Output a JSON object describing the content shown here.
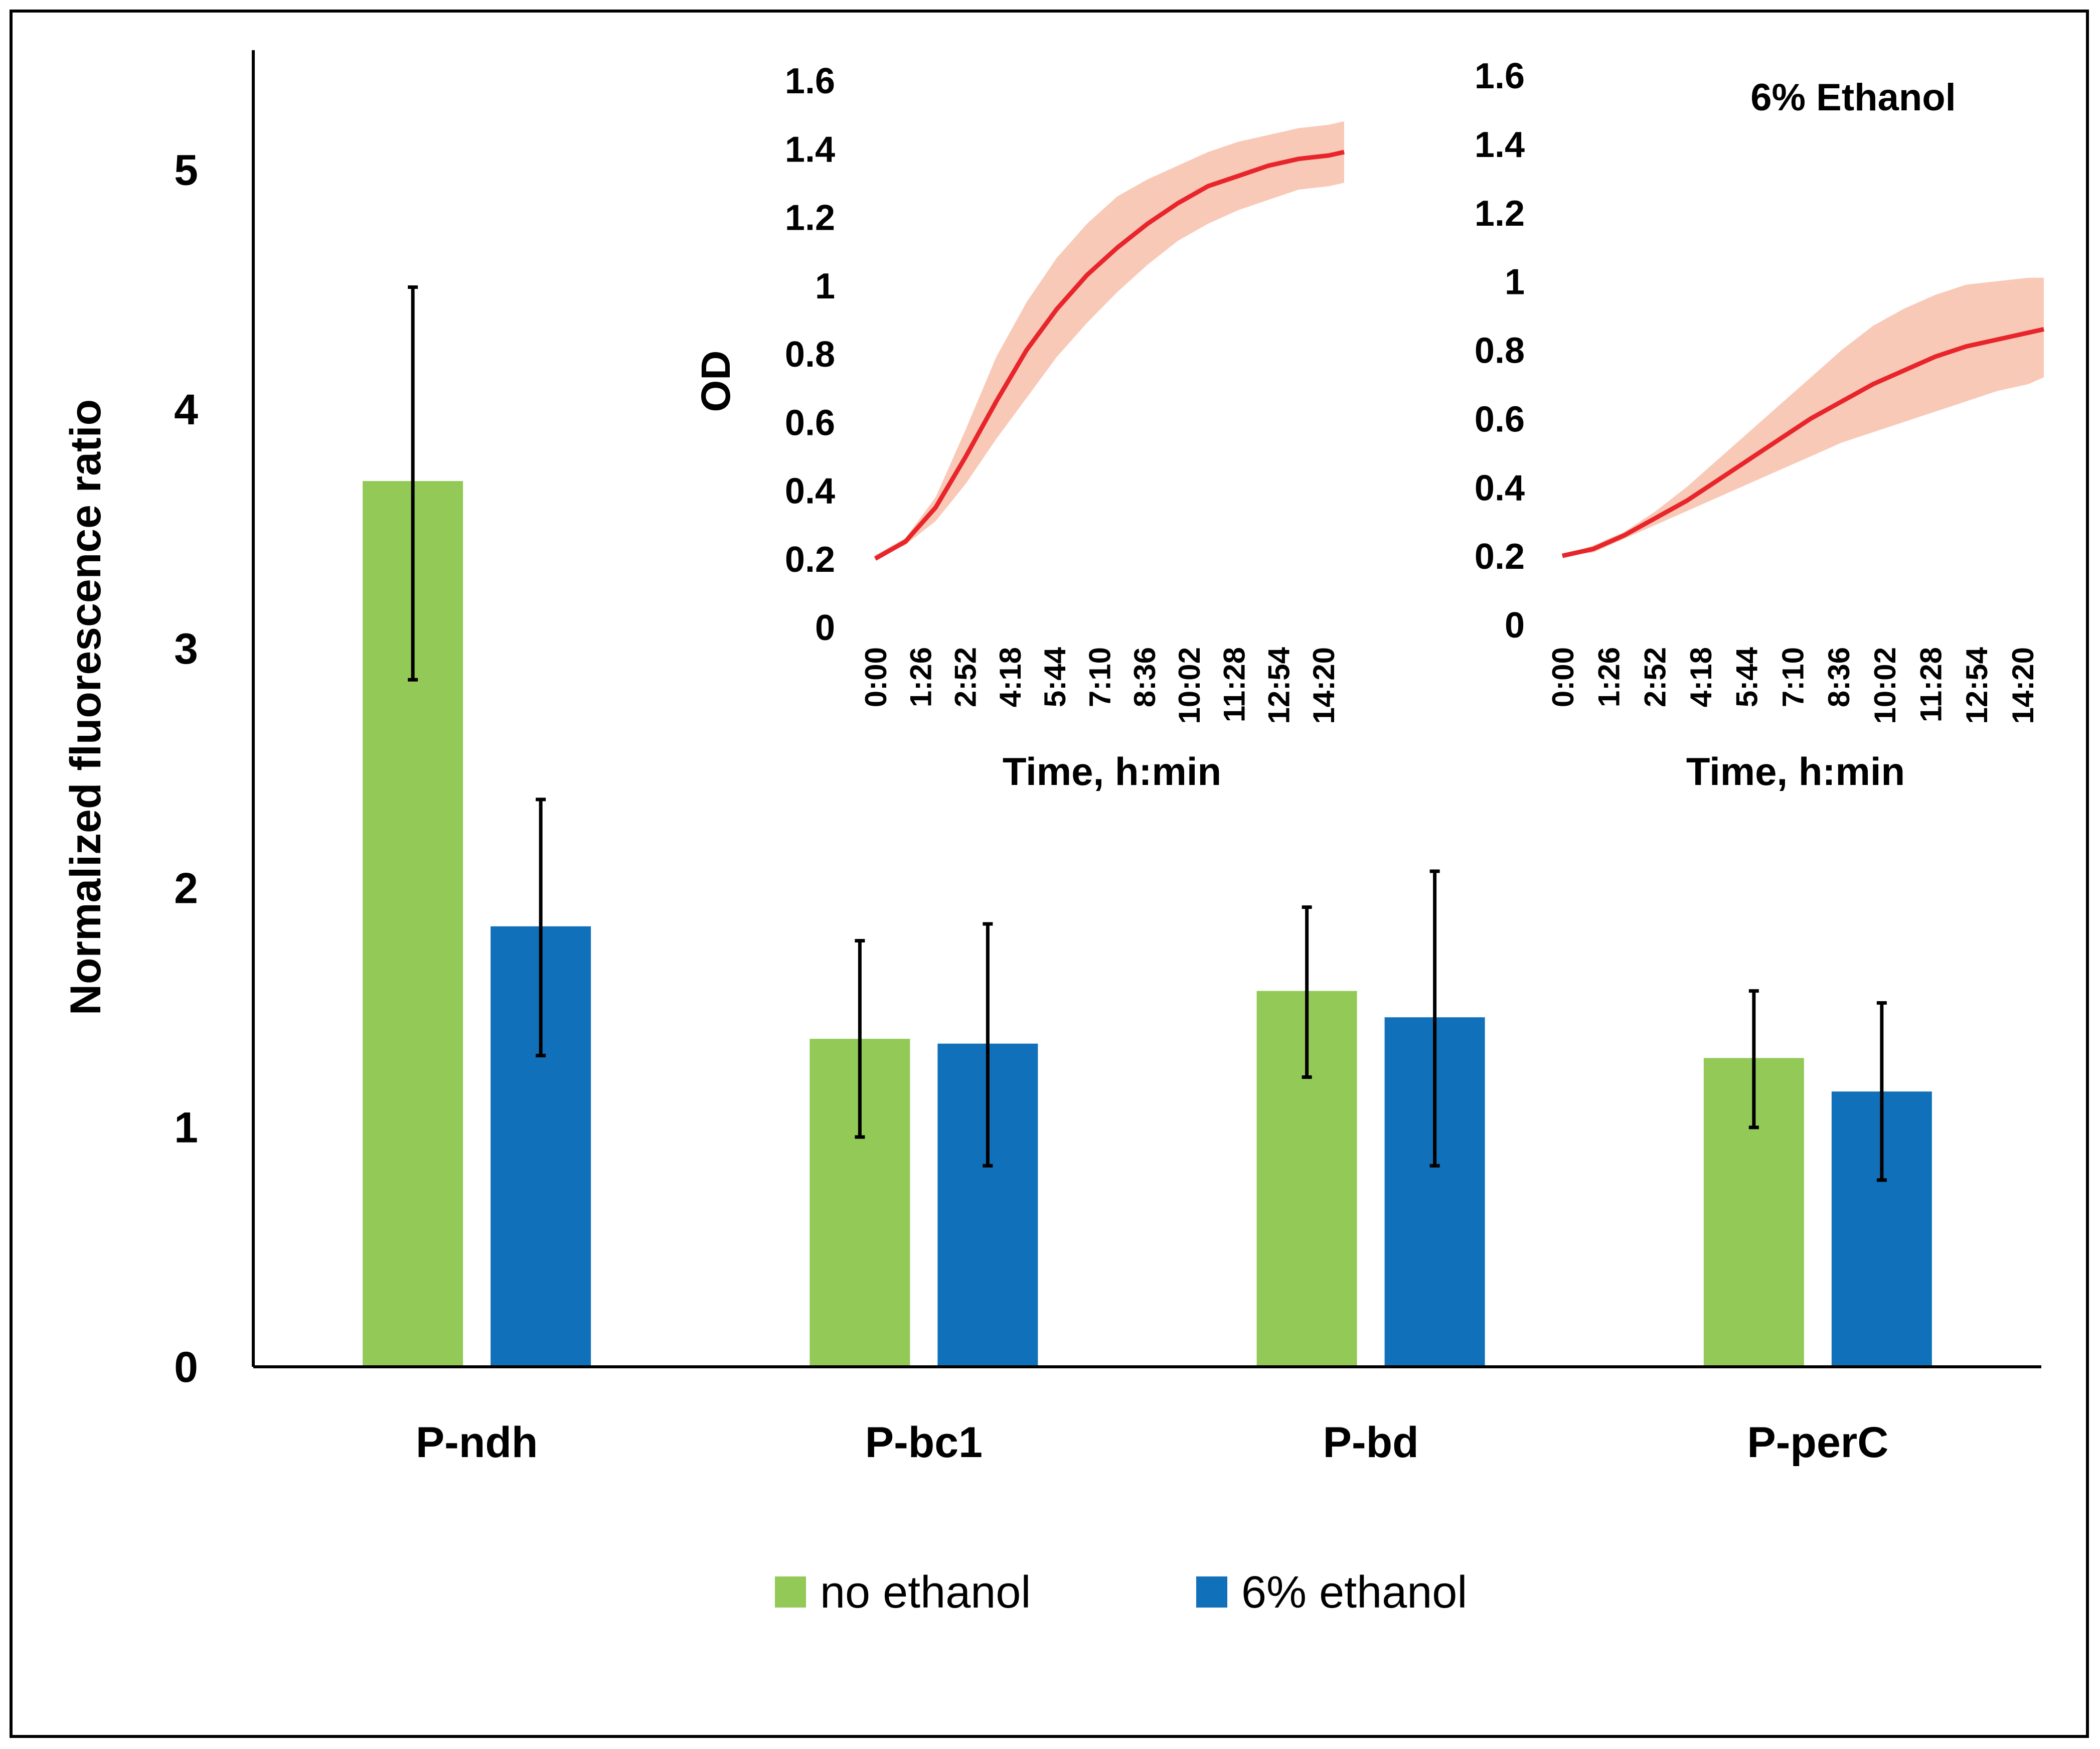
{
  "colors": {
    "no_ethanol": "#92C957",
    "ethanol_6": "#1170BA",
    "curve": "#E8252B",
    "band": "#F9C9B8",
    "axis": "#000000"
  },
  "chart_data": [
    {
      "type": "bar",
      "ylabel": "Normalized fluorescence ratio",
      "xlabel": "",
      "ylim": [
        0,
        5.5
      ],
      "yticks": [
        0,
        1,
        2,
        3,
        4,
        5
      ],
      "categories": [
        "P-ndh",
        "P-bc1",
        "P-bd",
        "P-perC"
      ],
      "series": [
        {
          "name": "no ethanol",
          "values": [
            3.7,
            1.37,
            1.57,
            1.29
          ],
          "errors": [
            [
              2.87,
              4.51
            ],
            [
              0.96,
              1.78
            ],
            [
              1.21,
              1.92
            ],
            [
              1.0,
              1.57
            ]
          ]
        },
        {
          "name": "6% ethanol",
          "values": [
            1.84,
            1.35,
            1.46,
            1.15
          ],
          "errors": [
            [
              1.3,
              2.37
            ],
            [
              0.84,
              1.85
            ],
            [
              0.84,
              2.07
            ],
            [
              0.78,
              1.52
            ]
          ]
        }
      ],
      "legend": [
        "no ethanol",
        "6% ethanol"
      ],
      "legend_position": "bottom"
    },
    {
      "type": "line",
      "title": "",
      "ylabel": "OD",
      "xlabel": "Time, h:min",
      "ylim": [
        0,
        1.6
      ],
      "yticks": [
        "0",
        "0.2",
        "0.4",
        "0.6",
        "0.8",
        "1",
        "1.2",
        "1.4",
        "1.6"
      ],
      "xticks": [
        "0:00",
        "1:26",
        "2:52",
        "4:18",
        "5:44",
        "7:10",
        "8:36",
        "10:02",
        "11:28",
        "12:54",
        "14:20"
      ],
      "xlim_minutes": [
        0,
        930
      ],
      "series": [
        {
          "name": "no ethanol OD",
          "x": [
            0,
            60,
            120,
            180,
            240,
            300,
            360,
            420,
            480,
            540,
            600,
            660,
            720,
            780,
            840,
            900,
            930
          ],
          "y": [
            0.2,
            0.25,
            0.35,
            0.5,
            0.66,
            0.81,
            0.93,
            1.03,
            1.11,
            1.18,
            1.24,
            1.29,
            1.32,
            1.35,
            1.37,
            1.38,
            1.39
          ],
          "lower": [
            0.2,
            0.24,
            0.31,
            0.42,
            0.55,
            0.67,
            0.79,
            0.89,
            0.98,
            1.06,
            1.13,
            1.18,
            1.22,
            1.25,
            1.28,
            1.29,
            1.3
          ],
          "upper": [
            0.21,
            0.26,
            0.38,
            0.58,
            0.79,
            0.95,
            1.08,
            1.18,
            1.26,
            1.31,
            1.35,
            1.39,
            1.42,
            1.44,
            1.46,
            1.47,
            1.48
          ]
        }
      ]
    },
    {
      "type": "line",
      "title": "6% Ethanol",
      "ylabel": "",
      "xlabel": "Time, h:min",
      "ylim": [
        0,
        1.6
      ],
      "yticks": [
        "0",
        "0.2",
        "0.4",
        "0.6",
        "0.8",
        "1",
        "1.2",
        "1.4",
        "1.6"
      ],
      "xticks": [
        "0:00",
        "1:26",
        "2:52",
        "4:18",
        "5:44",
        "7:10",
        "8:36",
        "10:02",
        "11:28",
        "12:54",
        "14:20"
      ],
      "xlim_minutes": [
        0,
        930
      ],
      "series": [
        {
          "name": "6% ethanol OD",
          "x": [
            0,
            60,
            120,
            180,
            240,
            300,
            360,
            420,
            480,
            540,
            600,
            660,
            720,
            780,
            840,
            900,
            930
          ],
          "y": [
            0.2,
            0.22,
            0.26,
            0.31,
            0.36,
            0.42,
            0.48,
            0.54,
            0.6,
            0.65,
            0.7,
            0.74,
            0.78,
            0.81,
            0.83,
            0.85,
            0.86
          ],
          "lower": [
            0.2,
            0.21,
            0.25,
            0.29,
            0.33,
            0.37,
            0.41,
            0.45,
            0.49,
            0.53,
            0.56,
            0.59,
            0.62,
            0.65,
            0.68,
            0.7,
            0.72
          ],
          "upper": [
            0.2,
            0.23,
            0.27,
            0.33,
            0.4,
            0.48,
            0.56,
            0.64,
            0.72,
            0.8,
            0.87,
            0.92,
            0.96,
            0.99,
            1.0,
            1.01,
            1.01
          ]
        }
      ]
    }
  ]
}
